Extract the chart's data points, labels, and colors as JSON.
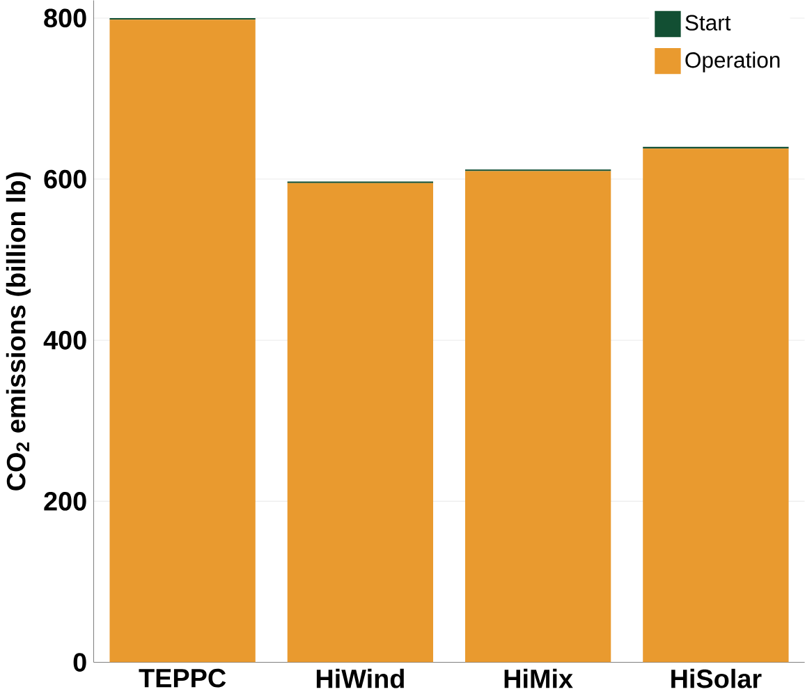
{
  "chart_data": {
    "type": "bar",
    "stacked": true,
    "ylabel": "CO$_{2}$ emissions (billion lb)",
    "categories": [
      "TEPPC",
      "HiWind",
      "HiMix",
      "HiSolar"
    ],
    "series": [
      {
        "name": "Operation",
        "color": "#e99a2f",
        "values": [
          798,
          595,
          610,
          638
        ]
      },
      {
        "name": "Start",
        "color": "#124f33",
        "values": [
          2,
          2,
          2,
          2
        ]
      }
    ],
    "ylim": [
      0,
      822
    ],
    "yticks": [
      0,
      200,
      400,
      600,
      800
    ],
    "grid": "y",
    "legend": "top right"
  }
}
